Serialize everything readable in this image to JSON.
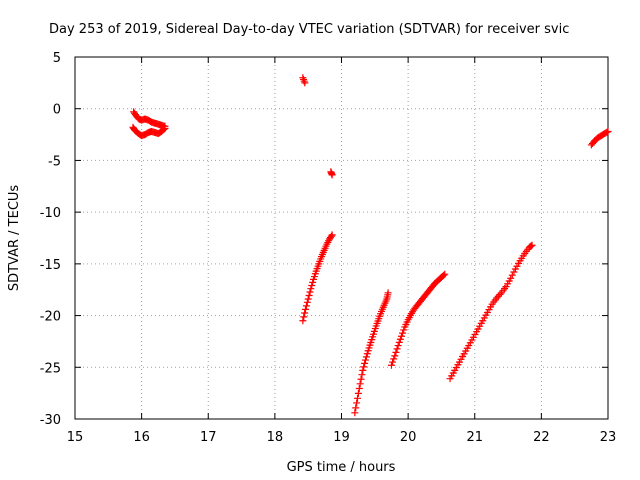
{
  "chart_data": {
    "type": "scatter",
    "title": "Day 253 of 2019, Sidereal Day-to-day VTEC variation (SDTVAR) for receiver svic",
    "xlabel": "GPS time / hours",
    "ylabel": "SDTVAR / TECUs",
    "xlim": [
      15,
      23
    ],
    "ylim": [
      -30,
      5
    ],
    "xticks": [
      "15",
      "16",
      "17",
      "18",
      "19",
      "20",
      "21",
      "22",
      "23"
    ],
    "yticks": [
      "5",
      "0",
      "-5",
      "-10",
      "-15",
      "-20",
      "-25",
      "-30"
    ],
    "grid": true,
    "marker": "plus",
    "color": "#ff0000",
    "segments": [
      {
        "x": [
          15.88,
          15.92,
          15.96,
          16.0,
          16.05,
          16.1,
          16.15,
          16.2,
          16.25,
          16.3,
          16.35
        ],
        "y": [
          -0.3,
          -0.7,
          -1.0,
          -1.1,
          -1.0,
          -1.1,
          -1.3,
          -1.4,
          -1.5,
          -1.6,
          -1.7
        ]
      },
      {
        "x": [
          15.87,
          15.9,
          15.95,
          16.0,
          16.05,
          16.1,
          16.15,
          16.2,
          16.25,
          16.3,
          16.35
        ],
        "y": [
          -1.8,
          -2.1,
          -2.4,
          -2.6,
          -2.5,
          -2.3,
          -2.2,
          -2.3,
          -2.4,
          -2.2,
          -1.9
        ]
      },
      {
        "x": [
          18.42,
          18.45
        ],
        "y": [
          3.0,
          2.5
        ]
      },
      {
        "x": [
          18.84,
          18.86
        ],
        "y": [
          -6.1,
          -6.4
        ]
      },
      {
        "x": [
          18.42,
          18.46,
          18.5,
          18.54,
          18.58,
          18.62,
          18.66,
          18.7,
          18.74,
          18.78,
          18.82,
          18.86
        ],
        "y": [
          -20.5,
          -19.4,
          -18.4,
          -17.4,
          -16.5,
          -15.7,
          -15.0,
          -14.3,
          -13.7,
          -13.1,
          -12.6,
          -12.2
        ]
      },
      {
        "x": [
          19.2,
          19.24,
          19.28,
          19.32,
          19.36,
          19.4,
          19.44,
          19.48,
          19.52,
          19.56,
          19.6,
          19.64,
          19.68,
          19.7
        ],
        "y": [
          -29.4,
          -28.0,
          -26.6,
          -25.3,
          -24.3,
          -23.4,
          -22.6,
          -21.8,
          -21.0,
          -20.3,
          -19.6,
          -19.0,
          -18.4,
          -17.8
        ]
      },
      {
        "x": [
          19.75,
          19.8,
          19.85,
          19.9,
          19.95,
          20.0,
          20.05,
          20.1,
          20.15,
          20.2,
          20.25,
          20.3,
          20.35,
          20.4,
          20.45,
          20.5,
          20.55
        ],
        "y": [
          -24.8,
          -23.9,
          -22.9,
          -22.0,
          -21.1,
          -20.4,
          -19.8,
          -19.3,
          -18.9,
          -18.5,
          -18.1,
          -17.7,
          -17.3,
          -16.9,
          -16.6,
          -16.3,
          -16.0
        ]
      },
      {
        "x": [
          20.63,
          20.7,
          20.77,
          20.84,
          20.91,
          20.98,
          21.05,
          21.12,
          21.19,
          21.26,
          21.33,
          21.4,
          21.47,
          21.54,
          21.61,
          21.68,
          21.75,
          21.82,
          21.86
        ],
        "y": [
          -26.1,
          -25.3,
          -24.5,
          -23.7,
          -22.9,
          -22.1,
          -21.3,
          -20.5,
          -19.7,
          -18.9,
          -18.3,
          -17.8,
          -17.2,
          -16.4,
          -15.5,
          -14.7,
          -14.0,
          -13.4,
          -13.2
        ]
      },
      {
        "x": [
          22.75,
          22.8,
          22.85,
          22.9,
          22.95,
          23.0
        ],
        "y": [
          -3.5,
          -3.1,
          -2.8,
          -2.6,
          -2.4,
          -2.2
        ]
      }
    ]
  }
}
